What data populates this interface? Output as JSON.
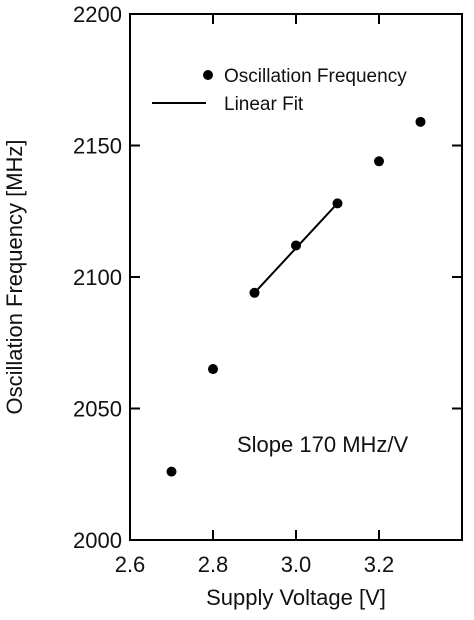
{
  "chart_data": {
    "type": "scatter",
    "title": "",
    "xlabel": "Supply Voltage [V]",
    "ylabel": "Oscillation Frequency [MHz]",
    "xlim": [
      2.6,
      3.4
    ],
    "ylim": [
      2000,
      2200
    ],
    "x_ticks": [
      2.6,
      2.8,
      3.0,
      3.2
    ],
    "x_tick_labels": [
      "2.6",
      "2.8",
      "3.0",
      "3.2"
    ],
    "y_ticks": [
      2000,
      2050,
      2100,
      2150,
      2200
    ],
    "y_tick_labels": [
      "2000",
      "2050",
      "2100",
      "2150",
      "2200"
    ],
    "series": [
      {
        "name": "Oscillation Frequency",
        "kind": "points",
        "x": [
          2.7,
          2.8,
          2.9,
          3.0,
          3.1,
          3.2,
          3.3
        ],
        "y": [
          2026,
          2065,
          2094,
          2112,
          2128,
          2144,
          2159
        ]
      },
      {
        "name": "Linear Fit",
        "kind": "line",
        "x": [
          2.9,
          3.1
        ],
        "y": [
          2094,
          2128
        ]
      }
    ],
    "annotation": "Slope 170 MHz/V",
    "legend_position": "top-right",
    "grid": false,
    "colors": {
      "marker": "#000000",
      "line": "#000000",
      "axis": "#000000"
    }
  }
}
